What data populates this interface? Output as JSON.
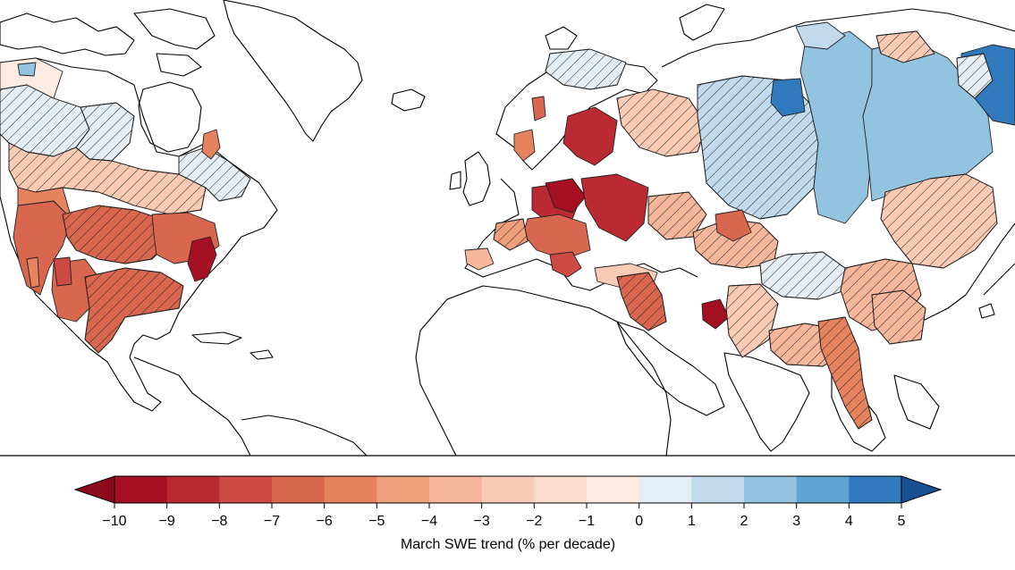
{
  "colorbar": {
    "title": "March SWE trend (% per decade)",
    "min": -10,
    "max": 5,
    "extend": "both",
    "ticks": [
      -10,
      -9,
      -8,
      -7,
      -6,
      -5,
      -4,
      -3,
      -2,
      -1,
      0,
      1,
      2,
      3,
      4,
      5
    ],
    "tick_labels": [
      "−10",
      "−9",
      "−8",
      "−7",
      "−6",
      "−5",
      "−4",
      "−3",
      "−2",
      "−1",
      "0",
      "1",
      "2",
      "3",
      "4",
      "5"
    ],
    "colors": [
      "#a50f22",
      "#bb2a32",
      "#cb4a42",
      "#d9664f",
      "#e5835f",
      "#ef9f7b",
      "#f5b69a",
      "#f9cab4",
      "#fcdccb",
      "#fdeae0",
      "#e6eef5",
      "#c2dbec",
      "#92c3df",
      "#5fa4d2",
      "#2f79bc"
    ],
    "under_color": "#8b0a1e",
    "over_color": "#1b4f93"
  },
  "legend_note": {
    "hatched": "hatched basins",
    "hatch_color": "#222222"
  },
  "map_background": "#ffffff",
  "coastline_color": "#000000"
}
